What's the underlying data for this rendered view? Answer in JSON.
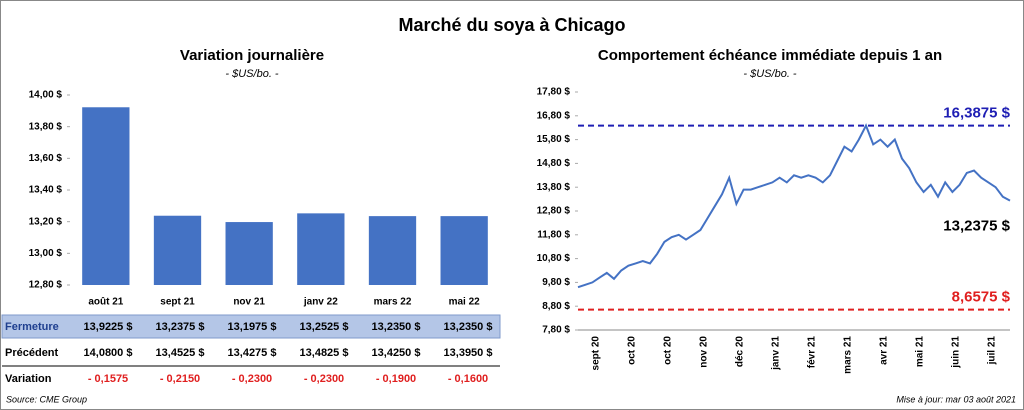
{
  "title": "Marché du soya à Chicago",
  "chart_data": [
    {
      "type": "bar",
      "title": "Variation journalière",
      "subtitle": "- $US/bo. -",
      "categories": [
        "août 21",
        "sept 21",
        "nov 21",
        "janv 22",
        "mars 22",
        "mai 22"
      ],
      "values": [
        13.9225,
        13.2375,
        13.1975,
        13.2525,
        13.235,
        13.235
      ],
      "color": "#4472c4",
      "ylim": [
        12.8,
        14.0
      ],
      "yticks": [
        {
          "value": 12.8,
          "label": "12,80 $"
        },
        {
          "value": 13.0,
          "label": "13,00 $"
        },
        {
          "value": 13.2,
          "label": "13,20 $"
        },
        {
          "value": 13.4,
          "label": "13,40 $"
        },
        {
          "value": 13.6,
          "label": "13,60 $"
        },
        {
          "value": 13.8,
          "label": "13,80 $"
        },
        {
          "value": 14.0,
          "label": "14,00 $"
        }
      ]
    },
    {
      "type": "line",
      "title": "Comportement échéance immédiate depuis 1 an",
      "subtitle": "- $US/bo. -",
      "xticks": [
        "sept 20",
        "oct 20",
        "oct 20",
        "nov 20",
        "déc 20",
        "janv 21",
        "févr 21",
        "mars 21",
        "avr 21",
        "mai 21",
        "juin 21",
        "juil 21"
      ],
      "color": "#4472c4",
      "values": [
        9.6,
        9.7,
        9.8,
        10.0,
        10.2,
        9.95,
        10.3,
        10.5,
        10.6,
        10.7,
        10.6,
        11.0,
        11.5,
        11.7,
        11.8,
        11.6,
        11.8,
        12.0,
        12.5,
        13.0,
        13.5,
        14.2,
        13.1,
        13.7,
        13.7,
        13.8,
        13.9,
        14.0,
        14.2,
        14.0,
        14.3,
        14.2,
        14.3,
        14.2,
        14.0,
        14.3,
        14.9,
        15.5,
        15.3,
        15.8,
        16.3875,
        15.6,
        15.8,
        15.5,
        15.8,
        15.0,
        14.6,
        14.0,
        13.6,
        13.9,
        13.4,
        14.0,
        13.6,
        13.9,
        14.4,
        14.5,
        14.2,
        14.0,
        13.8,
        13.4,
        13.2375
      ],
      "last_label": "13,2375 $",
      "reference_lines": [
        {
          "value": 16.3875,
          "label": "16,3875 $",
          "color": "#1f1fb4"
        },
        {
          "value": 8.6575,
          "label": "8,6575 $",
          "color": "#e02020"
        }
      ],
      "ylim": [
        7.8,
        17.8
      ],
      "yticks": [
        {
          "value": 7.8,
          "label": "7,80 $"
        },
        {
          "value": 8.8,
          "label": "8,80 $"
        },
        {
          "value": 9.8,
          "label": "9,80 $"
        },
        {
          "value": 10.8,
          "label": "10,80 $"
        },
        {
          "value": 11.8,
          "label": "11,80 $"
        },
        {
          "value": 12.8,
          "label": "12,80 $"
        },
        {
          "value": 13.8,
          "label": "13,80 $"
        },
        {
          "value": 14.8,
          "label": "14,80 $"
        },
        {
          "value": 15.8,
          "label": "15,80 $"
        },
        {
          "value": 16.8,
          "label": "16,80 $"
        },
        {
          "value": 17.8,
          "label": "17,80 $"
        }
      ]
    }
  ],
  "table": {
    "rows": [
      [
        "Fermeture",
        "13,9225 $",
        "13,2375 $",
        "13,1975 $",
        "13,2525 $",
        "13,2350 $",
        "13,2350 $"
      ],
      [
        "Précédent",
        "14,0800 $",
        "13,4525 $",
        "13,4275 $",
        "13,4825 $",
        "13,4250 $",
        "13,3950 $"
      ],
      [
        "Variation",
        "- 0,1575",
        "- 0,2150",
        "- 0,2300",
        "- 0,2300",
        "- 0,1900",
        "- 0,1600"
      ]
    ]
  },
  "footer": {
    "source": "Source: CME Group",
    "updated": "Mise à jour: mar 03 août 2021"
  }
}
